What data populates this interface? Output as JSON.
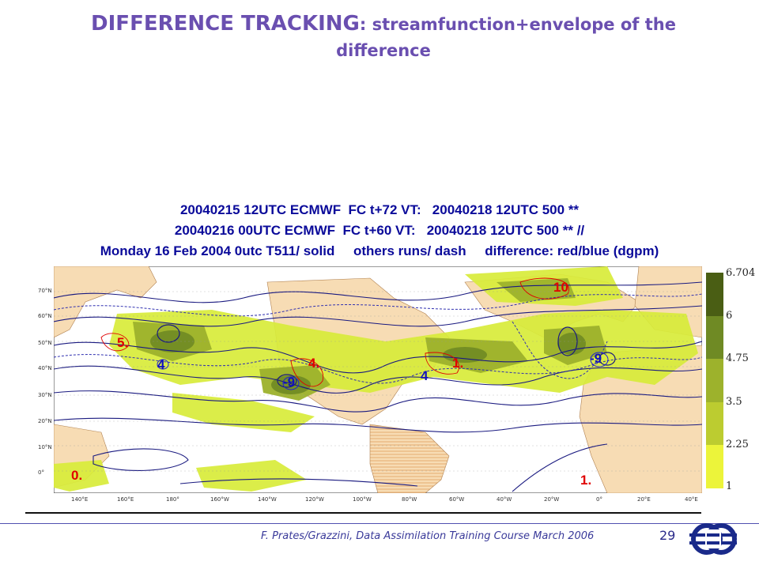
{
  "title": {
    "bold": "DIFFERENCE TRACKING",
    "rest": ": streamfunction+envelope of the",
    "line2": "difference"
  },
  "chart_header": [
    "20040215 12UTC ECMWF  FC t+72 VT:   20040218 12UTC 500 **",
    "20040216 00UTC ECMWF  FC t+60 VT:   20040218 12UTC 500 ** //",
    "Monday 16 Feb 2004 0utc T511/ solid     others runs/ dash     difference: red/blue (dgpm)"
  ],
  "map": {
    "lat_labels": [
      "70°N",
      "60°N",
      "50°N",
      "40°N",
      "30°N",
      "20°N",
      "10°N",
      "0°"
    ],
    "lon_labels": [
      "140°E",
      "160°E",
      "180°",
      "160°W",
      "140°W",
      "120°W",
      "100°W",
      "80°W",
      "60°W",
      "40°W",
      "20°W",
      "0°",
      "20°E",
      "40°E"
    ],
    "annotations": [
      {
        "text": "5.",
        "color": "#e00000"
      },
      {
        "text": "4",
        "color": "#1010c0"
      },
      {
        "text": "4.",
        "color": "#e00000"
      },
      {
        "text": "-9",
        "color": "#1010c0"
      },
      {
        "text": "4",
        "color": "#1010c0"
      },
      {
        "text": "1.",
        "color": "#e00000"
      },
      {
        "text": "10",
        "color": "#e00000"
      },
      {
        "text": "-9",
        "color": "#1010c0"
      },
      {
        "text": "0.",
        "color": "#e00000"
      },
      {
        "text": "1.",
        "color": "#e00000"
      }
    ]
  },
  "legend": {
    "values": [
      "6.704",
      "6",
      "4.75",
      "3.5",
      "2.25",
      "1"
    ],
    "colors": [
      "#4a5e14",
      "#6f8a24",
      "#9db22c",
      "#bccc30",
      "#d8e434",
      "#ecf43a"
    ]
  },
  "footer": {
    "citation": "F. Prates/Grazzini,  Data Assimilation Training Course March 2006",
    "page": "29"
  }
}
